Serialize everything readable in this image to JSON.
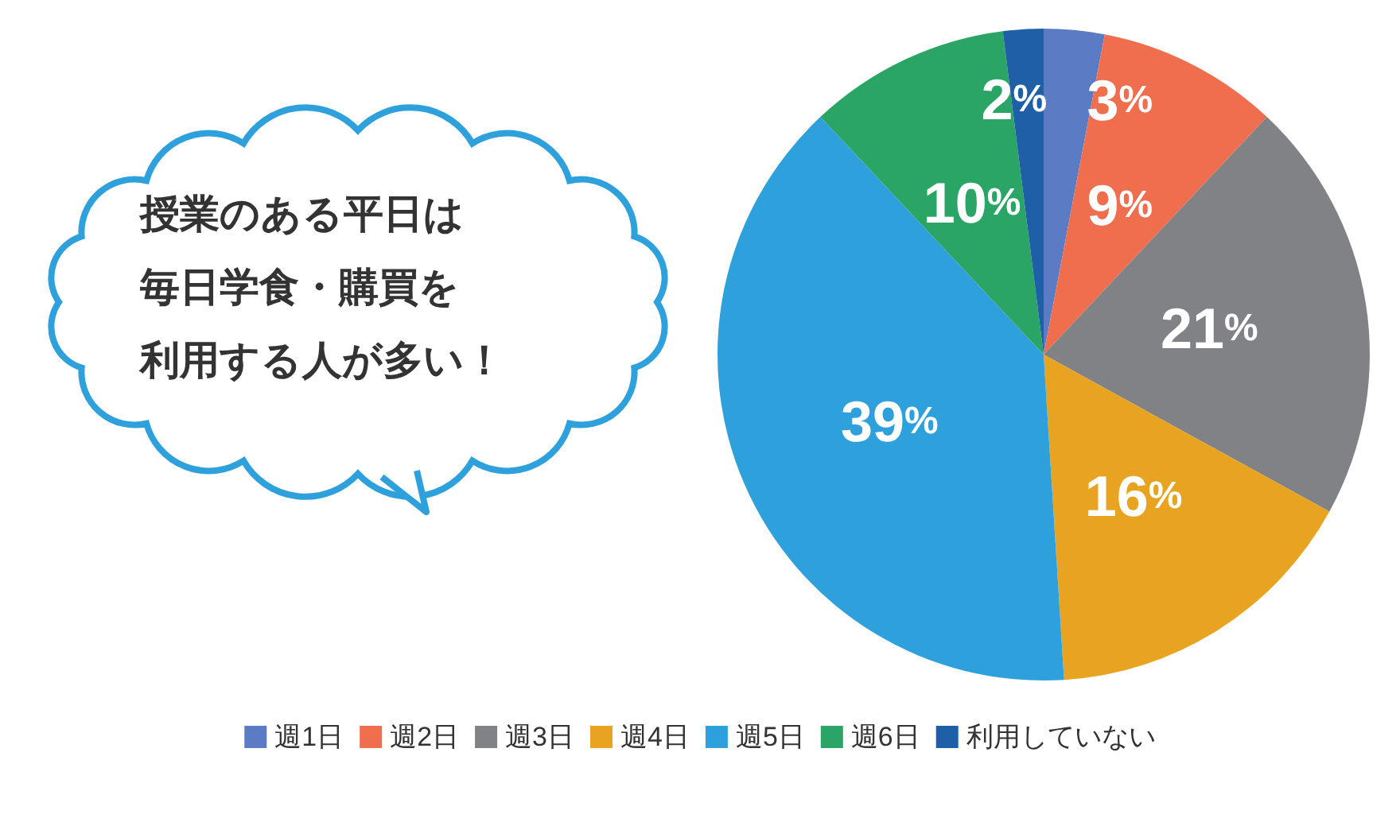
{
  "chart_data": {
    "type": "pie",
    "categories": [
      "週1日",
      "週2日",
      "週3日",
      "週4日",
      "週5日",
      "週6日",
      "利用していない"
    ],
    "values": [
      3,
      9,
      21,
      16,
      39,
      10,
      2
    ],
    "colors": [
      "#5b7bc4",
      "#ef6e4e",
      "#808285",
      "#e8a420",
      "#2ea1dd",
      "#2aa566",
      "#1f5fa8"
    ],
    "value_labels": [
      "3%",
      "9%",
      "21%",
      "16%",
      "39%",
      "10%",
      "2%"
    ],
    "legend": "bottom",
    "annotations": [
      "授業のある平日は毎日学食・購買を利用する人が多い！"
    ]
  }
}
